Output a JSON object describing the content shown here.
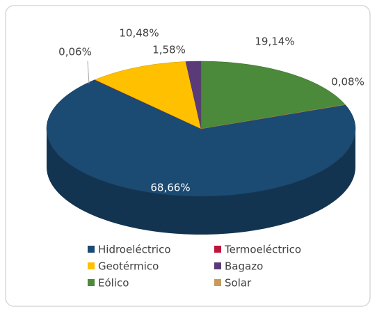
{
  "chart_data": {
    "type": "pie",
    "categories": [
      "Hidroeléctrico",
      "Termoeléctrico",
      "Geotérmico",
      "Bagazo",
      "Eólico",
      "Solar"
    ],
    "values": [
      68.66,
      0.06,
      10.48,
      1.58,
      19.14,
      0.08
    ],
    "value_labels": [
      "68,66%",
      "0,06%",
      "10,48%",
      "1,58%",
      "19,14%",
      "0,08%"
    ],
    "colors": [
      "#1b4a72",
      "#c0143c",
      "#ffc000",
      "#5b3a7a",
      "#4b8a3b",
      "#c89a5a"
    ],
    "legend": "bottom"
  }
}
